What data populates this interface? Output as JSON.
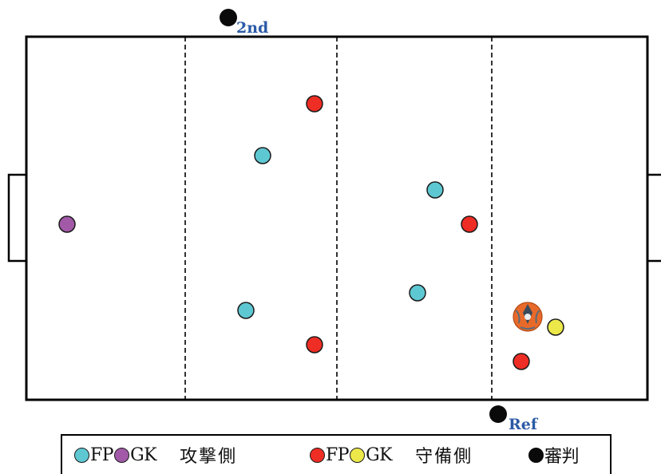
{
  "colors": {
    "attack_fp": "#5ec8d2",
    "attack_gk": "#a25aa8",
    "defense_fp": "#ee2d24",
    "defense_gk": "#ece84a",
    "referee": "#0a0a0a",
    "referee_label": "#2b5aa6",
    "line": "#000000",
    "ball": "#e86a2a"
  },
  "referees": {
    "second": {
      "label": "2nd"
    },
    "main": {
      "label": "Ref"
    }
  },
  "players": [
    {
      "team": "defense",
      "role": "FP",
      "icon": "red-player-icon"
    },
    {
      "team": "attack",
      "role": "FP",
      "icon": "cyan-player-icon"
    },
    {
      "team": "attack",
      "role": "FP",
      "icon": "cyan-player-icon"
    },
    {
      "team": "defense",
      "role": "FP",
      "icon": "red-player-icon"
    },
    {
      "team": "attack",
      "role": "GK",
      "icon": "purple-goalkeeper-icon"
    },
    {
      "team": "attack",
      "role": "FP",
      "icon": "cyan-player-icon"
    },
    {
      "team": "attack",
      "role": "FP",
      "icon": "cyan-player-icon"
    },
    {
      "team": "defense",
      "role": "FP",
      "icon": "red-player-icon"
    },
    {
      "team": "defense",
      "role": "GK",
      "icon": "yellow-goalkeeper-icon"
    },
    {
      "team": "defense",
      "role": "FP",
      "icon": "red-player-icon"
    }
  ],
  "ball": {
    "icon": "ball-icon"
  },
  "legend": {
    "attack_fp": "FP",
    "attack_gk": "GK",
    "attack_label": "攻撃側",
    "defense_fp": "FP",
    "defense_gk": "GK",
    "defense_label": "守備側",
    "referee_label": "審判"
  }
}
